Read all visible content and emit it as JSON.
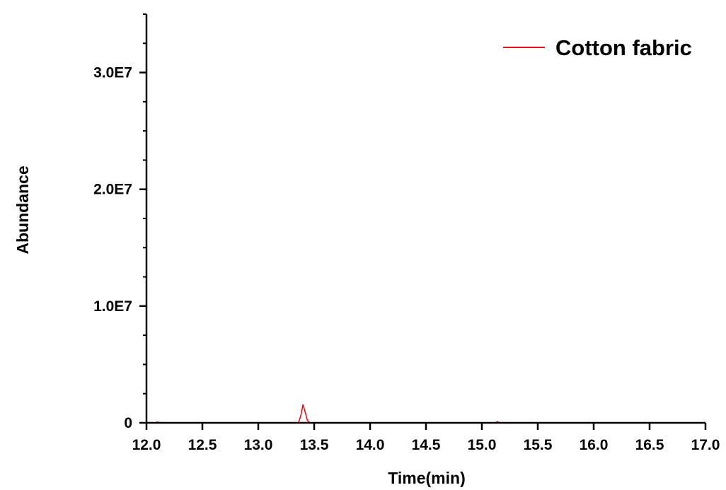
{
  "chart_data": {
    "type": "line",
    "title": "",
    "xlabel": "Time(min)",
    "ylabel": "Abundance",
    "xlim": [
      12.0,
      17.0
    ],
    "ylim": [
      0,
      35000000
    ],
    "x_ticks": [
      12.0,
      12.5,
      13.0,
      13.5,
      14.0,
      14.5,
      15.0,
      15.5,
      16.0,
      16.5,
      17.0
    ],
    "x_tick_labels": [
      "12.0",
      "12.5",
      "13.0",
      "13.5",
      "14.0",
      "14.5",
      "15.0",
      "15.5",
      "16.0",
      "16.5",
      "17.0"
    ],
    "y_ticks": [
      0,
      10000000,
      20000000,
      30000000
    ],
    "y_tick_labels": [
      "0",
      "1.0E7",
      "2.0E7",
      "3.0E7"
    ],
    "grid": false,
    "legend_position": "top-right",
    "series": [
      {
        "name": "Cotton fabric",
        "color": "#e0141e",
        "x": [
          12.0,
          12.08,
          12.1,
          12.12,
          12.5,
          13.0,
          13.3,
          13.36,
          13.38,
          13.4,
          13.42,
          13.44,
          13.46,
          13.5,
          14.0,
          14.5,
          15.0,
          15.12,
          15.14,
          15.16,
          15.5,
          16.0,
          16.5,
          17.0
        ],
        "y": [
          0,
          0,
          80000,
          0,
          0,
          0,
          0,
          20000,
          600000,
          1550000,
          900000,
          200000,
          20000,
          0,
          0,
          0,
          0,
          0,
          100000,
          0,
          0,
          0,
          0,
          0
        ]
      }
    ]
  }
}
